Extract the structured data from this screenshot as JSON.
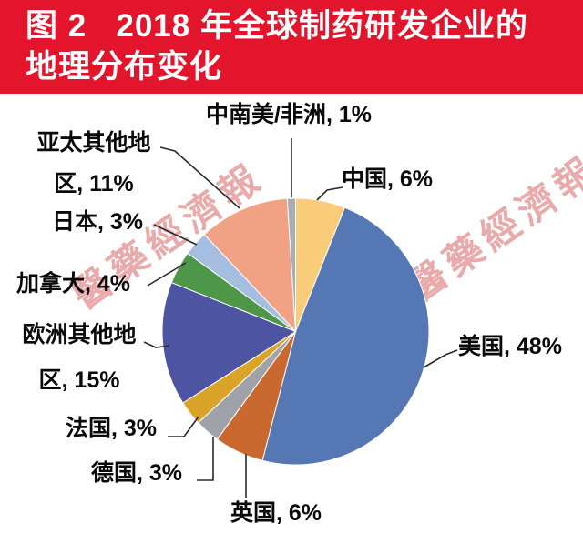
{
  "header": {
    "line1": "图 2   2018 年全球制药研发企业的",
    "line2": "地理分布变化",
    "background_color": "#E2152D",
    "text_color": "#FFFFFF"
  },
  "watermark": {
    "text": "醫藥經濟報",
    "color": "#D4585A"
  },
  "chart_data": {
    "type": "pie",
    "title": "图 2 2018 年全球制药研发企业的地理分布变化",
    "units": "percent",
    "start_angle_deg": 0,
    "direction": "clockwise",
    "legend_position": "none",
    "labels_style": "outside-callouts",
    "slices": [
      {
        "id": "china",
        "label": "中国",
        "value_pct": 6,
        "color": "#F8CC78",
        "callout_text": "中国, 6%"
      },
      {
        "id": "usa",
        "label": "美国",
        "value_pct": 48,
        "color": "#5578B4",
        "callout_text": "美国, 48%"
      },
      {
        "id": "uk",
        "label": "英国",
        "value_pct": 6,
        "color": "#C9682F",
        "callout_text": "英国, 6%"
      },
      {
        "id": "germany",
        "label": "德国",
        "value_pct": 3,
        "color": "#9FA2A8",
        "callout_text": "德国, 3%"
      },
      {
        "id": "france",
        "label": "法国",
        "value_pct": 3,
        "color": "#D9A427",
        "callout_text": "法国, 3%"
      },
      {
        "id": "europe_other",
        "label": "欧洲其他地区",
        "value_pct": 15,
        "color": "#4D55A2",
        "callout_text": "欧洲其他地\n区, 15%"
      },
      {
        "id": "canada",
        "label": "加拿大",
        "value_pct": 4,
        "color": "#4F9748",
        "callout_text": "加拿大, 4%"
      },
      {
        "id": "japan",
        "label": "日本",
        "value_pct": 3,
        "color": "#A5BDDF",
        "callout_text": "日本, 3%"
      },
      {
        "id": "asia_pac_other",
        "label": "亚太其他地区",
        "value_pct": 11,
        "color": "#F1A284",
        "callout_text": "亚太其他地\n区, 11%"
      },
      {
        "id": "csa_africa",
        "label": "中南美/非洲",
        "value_pct": 1,
        "color": "#ABABB5",
        "callout_text": "中南美/非洲, 1%"
      }
    ]
  }
}
